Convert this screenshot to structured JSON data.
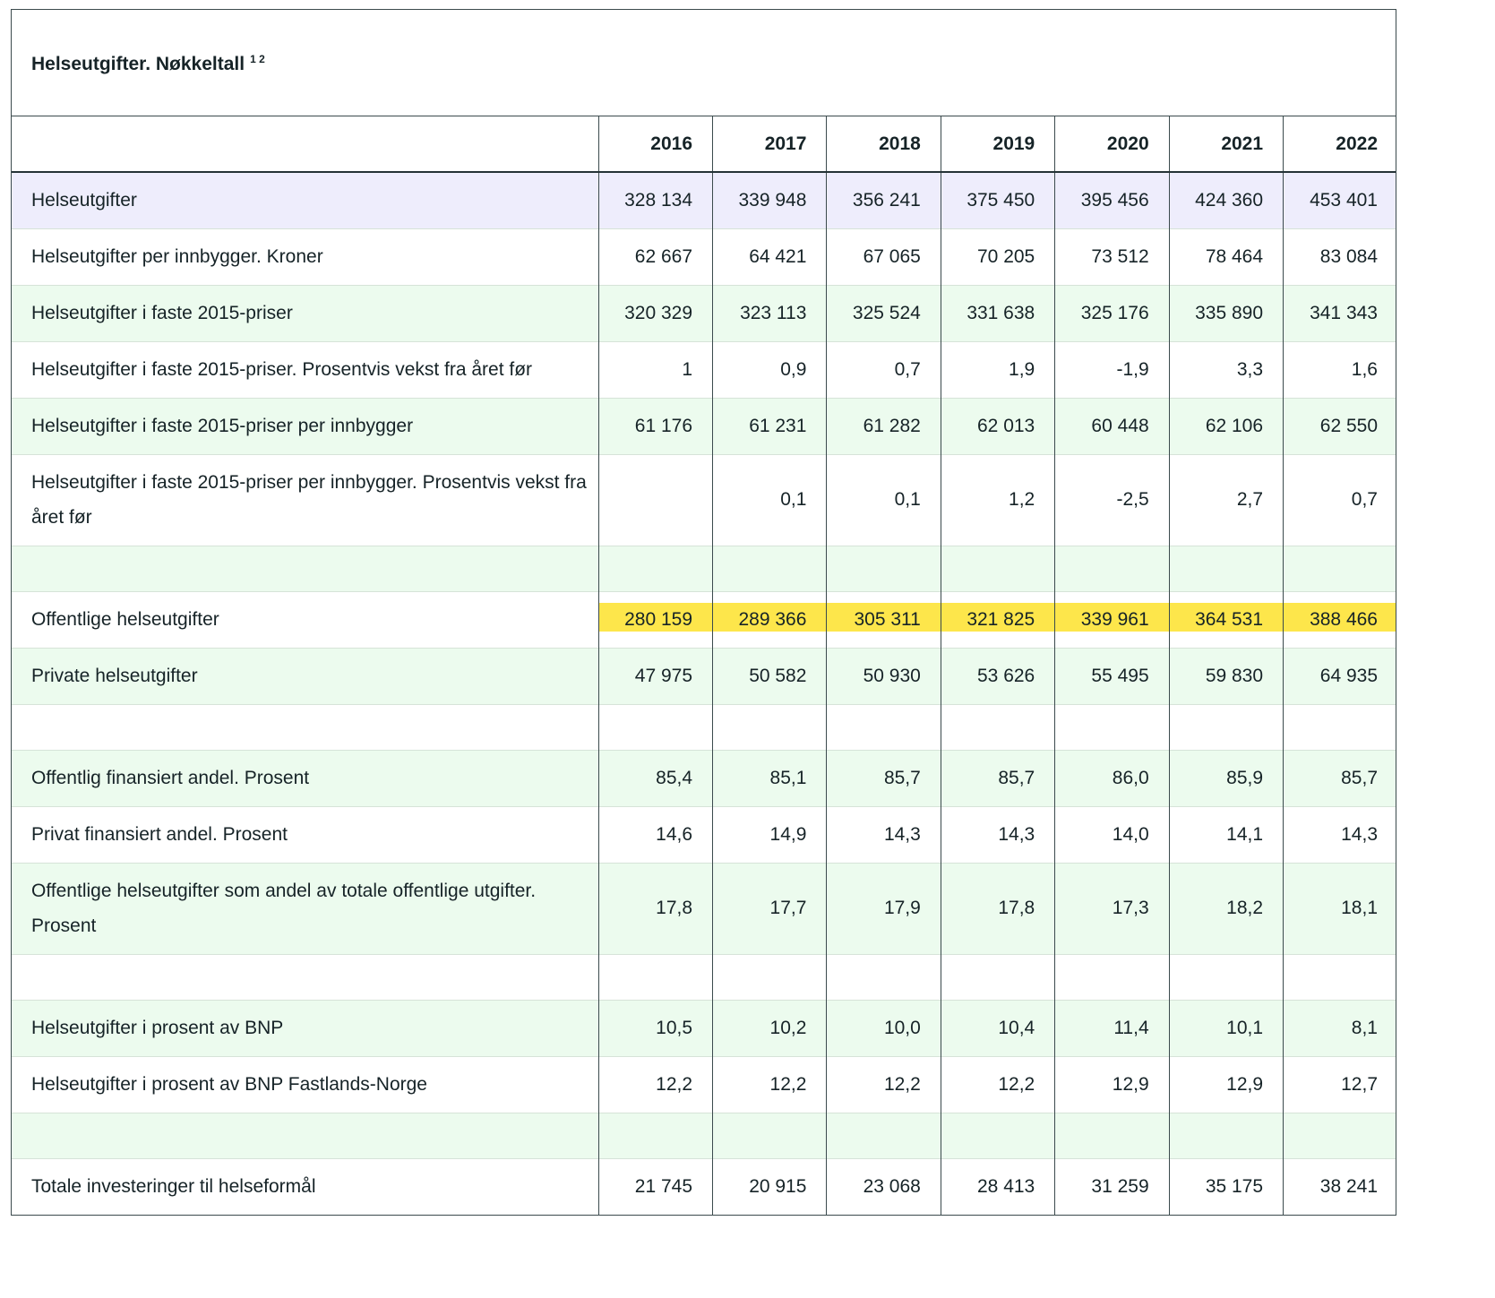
{
  "table": {
    "title": "Helseutgifter. Nøkkeltall",
    "footnotes": "1 2",
    "years": [
      "2016",
      "2017",
      "2018",
      "2019",
      "2020",
      "2021",
      "2022"
    ],
    "rows": [
      {
        "label": "Helseutgifter",
        "values": [
          "328 134",
          "339 948",
          "356 241",
          "375 450",
          "395 456",
          "424 360",
          "453 401"
        ]
      },
      {
        "label": "Helseutgifter per innbygger. Kroner",
        "values": [
          "62 667",
          "64 421",
          "67 065",
          "70 205",
          "73 512",
          "78 464",
          "83 084"
        ]
      },
      {
        "label": "Helseutgifter i faste 2015-priser",
        "values": [
          "320 329",
          "323 113",
          "325 524",
          "331 638",
          "325 176",
          "335 890",
          "341 343"
        ]
      },
      {
        "label": "Helseutgifter i faste 2015-priser. Prosentvis vekst fra året før",
        "values": [
          "1",
          "0,9",
          "0,7",
          "1,9",
          "-1,9",
          "3,3",
          "1,6"
        ]
      },
      {
        "label": "Helseutgifter i faste 2015-priser per innbygger",
        "values": [
          "61 176",
          "61 231",
          "61 282",
          "62 013",
          "60 448",
          "62 106",
          "62 550"
        ]
      },
      {
        "label": "Helseutgifter i faste 2015-priser per innbygger. Prosentvis vekst fra året før",
        "values": [
          "",
          "0,1",
          "0,1",
          "1,2",
          "-2,5",
          "2,7",
          "0,7"
        ]
      },
      {
        "label": "",
        "values": [
          "",
          "",
          "",
          "",
          "",
          "",
          ""
        ]
      },
      {
        "label": "Offentlige helseutgifter",
        "values": [
          "280 159",
          "289 366",
          "305 311",
          "321 825",
          "339 961",
          "364 531",
          "388 466"
        ]
      },
      {
        "label": "Private helseutgifter",
        "values": [
          "47 975",
          "50 582",
          "50 930",
          "53 626",
          "55 495",
          "59 830",
          "64 935"
        ]
      },
      {
        "label": "",
        "values": [
          "",
          "",
          "",
          "",
          "",
          "",
          ""
        ]
      },
      {
        "label": "Offentlig finansiert andel. Prosent",
        "values": [
          "85,4",
          "85,1",
          "85,7",
          "85,7",
          "86,0",
          "85,9",
          "85,7"
        ]
      },
      {
        "label": "Privat finansiert andel. Prosent",
        "values": [
          "14,6",
          "14,9",
          "14,3",
          "14,3",
          "14,0",
          "14,1",
          "14,3"
        ]
      },
      {
        "label": "Offentlige helseutgifter som andel av totale offentlige utgifter. Prosent",
        "values": [
          "17,8",
          "17,7",
          "17,9",
          "17,8",
          "17,3",
          "18,2",
          "18,1"
        ]
      },
      {
        "label": "",
        "values": [
          "",
          "",
          "",
          "",
          "",
          "",
          ""
        ]
      },
      {
        "label": "Helseutgifter i prosent av BNP",
        "values": [
          "10,5",
          "10,2",
          "10,0",
          "10,4",
          "11,4",
          "10,1",
          "8,1"
        ]
      },
      {
        "label": "Helseutgifter i prosent av BNP Fastlands-Norge",
        "values": [
          "12,2",
          "12,2",
          "12,2",
          "12,2",
          "12,9",
          "12,9",
          "12,7"
        ]
      },
      {
        "label": "",
        "values": [
          "",
          "",
          "",
          "",
          "",
          "",
          ""
        ]
      },
      {
        "label": "Totale investeringer til helseformål",
        "values": [
          "21 745",
          "20 915",
          "23 068",
          "28 413",
          "31 259",
          "35 175",
          "38 241"
        ]
      }
    ]
  },
  "colors": {
    "row_lavender": "#eeedfc",
    "row_green": "#ecfbee",
    "row_white": "#ffffff",
    "highlight_yellow": "#fde64b",
    "border": "#3b4a4d"
  }
}
